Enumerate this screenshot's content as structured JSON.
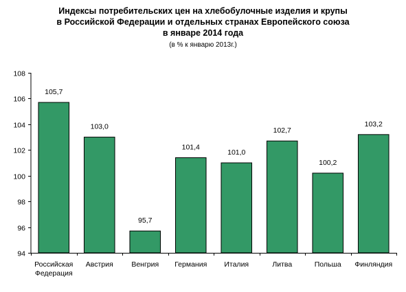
{
  "chart_data": {
    "type": "bar",
    "title_lines": [
      "Индексы потребительских цен на хлебобулочные изделия и крупы",
      "в Российской Федерации и отдельных странах Европейского союза",
      "в январе 2014 года"
    ],
    "subtitle": "(в % к январю 2013г.)",
    "categories": [
      [
        "Российская",
        "Федерация"
      ],
      [
        "Австрия"
      ],
      [
        "Венгрия"
      ],
      [
        "Германия"
      ],
      [
        "Италия"
      ],
      [
        "Литва"
      ],
      [
        "Польша"
      ],
      [
        "Финляндия"
      ]
    ],
    "values": [
      105.7,
      103.0,
      95.7,
      101.4,
      101.0,
      102.7,
      100.2,
      103.2
    ],
    "value_labels": [
      "105,7",
      "103,0",
      "95,7",
      "101,4",
      "101,0",
      "102,7",
      "100,2",
      "103,2"
    ],
    "ylim": [
      94,
      108
    ],
    "yticks": [
      94,
      96,
      98,
      100,
      102,
      104,
      106,
      108
    ],
    "ytick_labels": [
      "94",
      "96",
      "98",
      "100",
      "102",
      "104",
      "106",
      "108"
    ],
    "bar_color": "#339966",
    "grid": false,
    "legend": "none"
  }
}
